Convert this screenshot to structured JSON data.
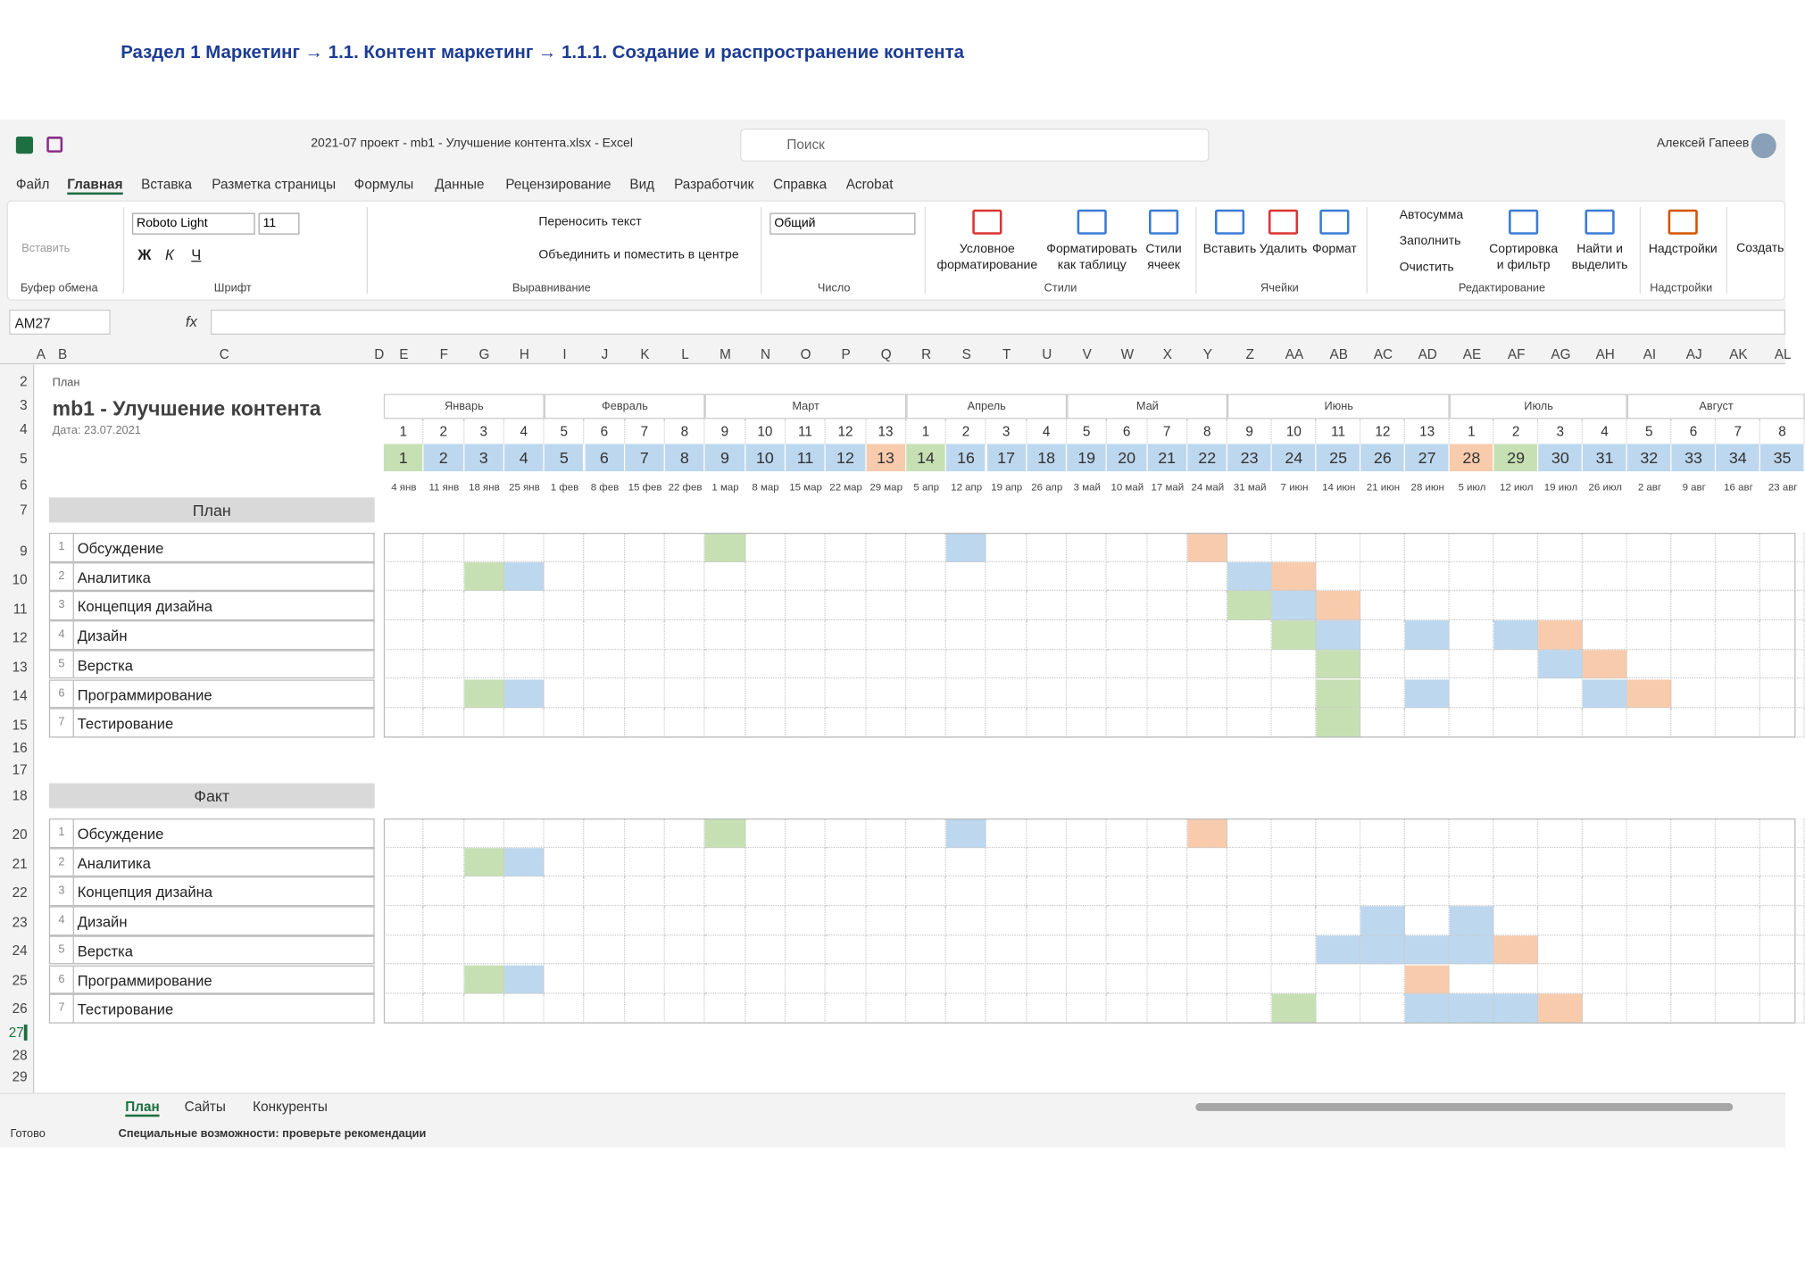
{
  "header": {
    "breadcrumb": "Раздел 1 Маркетинг  → 1.1. Контент маркетинг → 1.1.1. Создание и распространение контента"
  },
  "title_bar": {
    "file": "2021-07 проект - mb1 - Улучшение контента.xlsx  -  Excel",
    "search": "Поиск",
    "user": "Алексей Гапеев"
  },
  "menu": [
    "Файл",
    "Главная",
    "Вставка",
    "Разметка страницы",
    "Формулы",
    "Данные",
    "Рецензирование",
    "Вид",
    "Разработчик",
    "Справка",
    "Acrobat"
  ],
  "ribbon": {
    "clipboard": {
      "paste": "Вставить",
      "label": "Буфер обмена"
    },
    "font": {
      "name": "Roboto Light",
      "size": 11,
      "bold": "Ж",
      "italic": "К",
      "underline": "Ч",
      "label": "Шрифт"
    },
    "alignment": {
      "wrap": "Переносить текст",
      "merge": "Объединить и поместить в центре",
      "label": "Выравнивание"
    },
    "number": {
      "format": "Общий",
      "label": "Число"
    },
    "styles": {
      "conditional": "Условное форматирование",
      "table": "Форматировать как таблицу",
      "cell": "Стили ячеек",
      "label": "Стили"
    },
    "cells": {
      "insert": "Вставить",
      "delete": "Удалить",
      "format": "Формат",
      "label": "Ячейки"
    },
    "editing": {
      "autosum": "Автосумма",
      "fill": "Заполнить",
      "clear": "Очистить",
      "sort": "Сортировка и фильтр",
      "find": "Найти и выделить",
      "label": "Редактирование"
    },
    "addins": {
      "addins": "Надстройки",
      "label": "Надстройки"
    },
    "create": "Создать"
  },
  "formula_bar": {
    "name_box": "AM27",
    "fx": "fx"
  },
  "column_headers": [
    "A",
    "B",
    "C",
    "D",
    "E",
    "F",
    "G",
    "H",
    "I",
    "J",
    "K",
    "L",
    "M",
    "N",
    "O",
    "P",
    "Q",
    "R",
    "S",
    "T",
    "U",
    "V",
    "W",
    "X",
    "Y",
    "Z",
    "AA",
    "AB",
    "AC",
    "AD",
    "AE",
    "AF",
    "AG",
    "AH",
    "AI",
    "AJ",
    "AK",
    "AL"
  ],
  "row_numbers": [
    2,
    3,
    4,
    5,
    6,
    7,
    9,
    10,
    11,
    12,
    13,
    14,
    15,
    16,
    17,
    18,
    20,
    21,
    22,
    23,
    24,
    25,
    26,
    27,
    28,
    29
  ],
  "sheet": {
    "label": "План",
    "title": "mb1 - Улучшение контента",
    "date": "Дата: 23.07.2021",
    "months": [
      "Январь",
      "Февраль",
      "Март",
      "Апрель",
      "Май",
      "Июнь",
      "Июль",
      "Август"
    ],
    "week_in_month": [
      1,
      2,
      3,
      4,
      5,
      6,
      7,
      8,
      9,
      10,
      11,
      12,
      13,
      1,
      2,
      3,
      4,
      5,
      6,
      7,
      8,
      9,
      10,
      11,
      12,
      13,
      1,
      2,
      3,
      4,
      5,
      6,
      7,
      8
    ],
    "week_numbers": [
      1,
      2,
      3,
      4,
      5,
      6,
      7,
      8,
      9,
      10,
      11,
      12,
      13,
      14,
      16,
      17,
      18,
      19,
      20,
      21,
      22,
      23,
      24,
      25,
      26,
      27,
      28,
      29,
      30,
      31,
      32,
      33,
      34,
      35
    ],
    "dates": [
      "4 янв",
      "11 янв",
      "18 янв",
      "25 янв",
      "1 фев",
      "8 фев",
      "15 фев",
      "22 фев",
      "1 мар",
      "8 мар",
      "15 мар",
      "22 мар",
      "29 мар",
      "5 апр",
      "12 апр",
      "19 апр",
      "26 апр",
      "3 май",
      "10 май",
      "17 май",
      "24 май",
      "31 май",
      "7 июн",
      "14 июн",
      "21 июн",
      "28 июн",
      "5 июл",
      "12 июл",
      "19 июл",
      "26 июл",
      "2 авг",
      "9 авг",
      "16 авг",
      "23 авг"
    ],
    "plan": {
      "label": "План",
      "tasks": [
        {
          "num": 1,
          "name": "Обсуждение"
        },
        {
          "num": 2,
          "name": "Аналитика"
        },
        {
          "num": 3,
          "name": "Концепция дизайна"
        },
        {
          "num": 4,
          "name": "Дизайн"
        },
        {
          "num": 5,
          "name": "Верстка"
        },
        {
          "num": 6,
          "name": "Программирование"
        },
        {
          "num": 7,
          "name": "Тестирование"
        }
      ]
    },
    "fact": {
      "label": "Факт",
      "tasks": [
        {
          "num": 1,
          "name": "Обсуждение"
        },
        {
          "num": 2,
          "name": "Аналитика"
        },
        {
          "num": 3,
          "name": "Концепция дизайна"
        },
        {
          "num": 4,
          "name": "Дизайн"
        },
        {
          "num": 5,
          "name": "Верстка"
        },
        {
          "num": 6,
          "name": "Программирование"
        },
        {
          "num": 7,
          "name": "Тестирование"
        }
      ]
    }
  },
  "sheet_tabs": [
    "План",
    "Сайты",
    "Конкуренты"
  ],
  "status": {
    "ready": "Готово",
    "accessibility": "Специальные возможности: проверьте рекомендации"
  }
}
